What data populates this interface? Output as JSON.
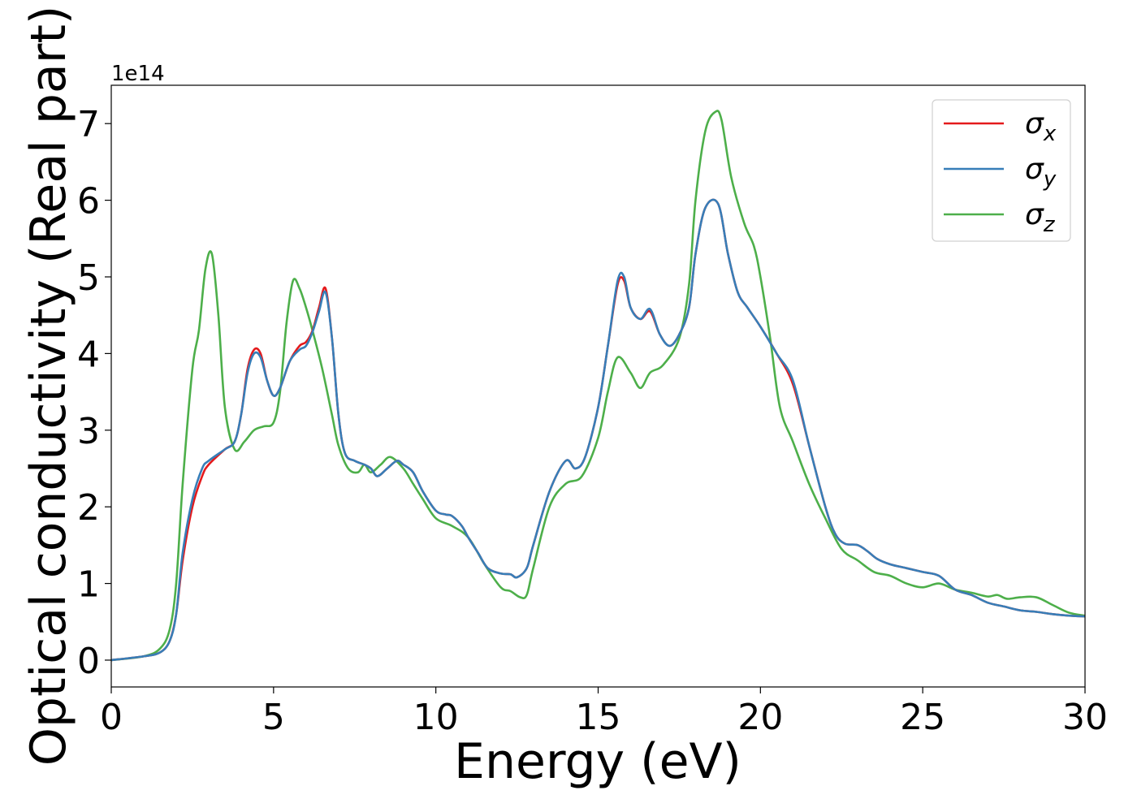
{
  "chart_data": {
    "type": "line",
    "xlabel": "Energy (eV)",
    "ylabel": "Optical conductivity (Real part)",
    "y_offset_label": "1e14",
    "xlim": [
      0,
      30
    ],
    "ylim": [
      -0.35,
      7.5
    ],
    "x_ticks": [
      0,
      5,
      10,
      15,
      20,
      25,
      30
    ],
    "y_ticks": [
      0,
      1,
      2,
      3,
      4,
      5,
      6,
      7
    ],
    "grid": false,
    "legend_position": "top-right",
    "series": [
      {
        "name": "σ",
        "subscript": "x",
        "color": "#e41a1c",
        "x": [
          0,
          1,
          1.5,
          1.8,
          2,
          2.2,
          2.5,
          2.8,
          3,
          3.5,
          3.8,
          4,
          4.2,
          4.4,
          4.6,
          4.8,
          5,
          5.2,
          5.5,
          5.8,
          6,
          6.2,
          6.4,
          6.6,
          6.8,
          7,
          7.2,
          7.5,
          7.8,
          8,
          8.2,
          8.5,
          8.8,
          9,
          9.3,
          9.6,
          10,
          10.3,
          10.5,
          10.8,
          11,
          11.3,
          11.6,
          12,
          12.3,
          12.5,
          12.8,
          13,
          13.5,
          14,
          14.3,
          14.6,
          15,
          15.3,
          15.6,
          15.8,
          16,
          16.3,
          16.6,
          16.9,
          17.2,
          17.5,
          17.8,
          18,
          18.3,
          18.7,
          19,
          19.3,
          19.6,
          20,
          20.5,
          21,
          21.5,
          22,
          22.3,
          22.6,
          23,
          23.3,
          23.6,
          24,
          24.5,
          25,
          25.5,
          26,
          26.5,
          27,
          27.5,
          28,
          28.5,
          29,
          29.5,
          30
        ],
        "y": [
          0,
          0.05,
          0.1,
          0.25,
          0.6,
          1.3,
          2,
          2.4,
          2.55,
          2.75,
          2.85,
          3.2,
          3.8,
          4.05,
          4.0,
          3.65,
          3.45,
          3.55,
          3.9,
          4.1,
          4.15,
          4.3,
          4.6,
          4.85,
          4.2,
          3.2,
          2.7,
          2.6,
          2.55,
          2.5,
          2.4,
          2.5,
          2.6,
          2.55,
          2.45,
          2.2,
          1.95,
          1.9,
          1.88,
          1.75,
          1.6,
          1.4,
          1.2,
          1.13,
          1.12,
          1.08,
          1.2,
          1.5,
          2.2,
          2.6,
          2.5,
          2.65,
          3.3,
          4.1,
          4.9,
          4.95,
          4.6,
          4.45,
          4.55,
          4.25,
          4.1,
          4.25,
          4.6,
          5.3,
          5.9,
          5.95,
          5.3,
          4.8,
          4.6,
          4.35,
          4.0,
          3.6,
          2.8,
          2.0,
          1.65,
          1.52,
          1.5,
          1.42,
          1.32,
          1.25,
          1.2,
          1.15,
          1.1,
          0.92,
          0.85,
          0.75,
          0.7,
          0.65,
          0.63,
          0.6,
          0.58,
          0.57
        ]
      },
      {
        "name": "σ",
        "subscript": "y",
        "color": "#377eb8",
        "x": [
          0,
          1,
          1.5,
          1.8,
          2,
          2.2,
          2.5,
          2.8,
          3,
          3.5,
          3.8,
          4,
          4.2,
          4.4,
          4.6,
          4.8,
          5,
          5.2,
          5.5,
          5.8,
          6,
          6.2,
          6.4,
          6.6,
          6.8,
          7,
          7.2,
          7.5,
          7.8,
          8,
          8.2,
          8.5,
          8.8,
          9,
          9.3,
          9.6,
          10,
          10.3,
          10.5,
          10.8,
          11,
          11.3,
          11.6,
          12,
          12.3,
          12.5,
          12.8,
          13,
          13.5,
          14,
          14.3,
          14.6,
          15,
          15.3,
          15.6,
          15.8,
          16,
          16.3,
          16.6,
          16.9,
          17.2,
          17.5,
          17.8,
          18,
          18.3,
          18.7,
          19,
          19.3,
          19.6,
          20,
          20.5,
          21,
          21.5,
          22,
          22.3,
          22.6,
          23,
          23.3,
          23.6,
          24,
          24.5,
          25,
          25.5,
          26,
          26.5,
          27,
          27.5,
          28,
          28.5,
          29,
          29.5,
          30
        ],
        "y": [
          0,
          0.05,
          0.1,
          0.25,
          0.6,
          1.4,
          2.1,
          2.5,
          2.6,
          2.75,
          2.85,
          3.2,
          3.75,
          4.0,
          3.95,
          3.65,
          3.45,
          3.55,
          3.9,
          4.05,
          4.1,
          4.28,
          4.55,
          4.8,
          4.2,
          3.2,
          2.7,
          2.6,
          2.55,
          2.5,
          2.4,
          2.5,
          2.6,
          2.55,
          2.45,
          2.2,
          1.95,
          1.9,
          1.88,
          1.75,
          1.6,
          1.4,
          1.2,
          1.13,
          1.12,
          1.08,
          1.2,
          1.5,
          2.2,
          2.6,
          2.5,
          2.65,
          3.3,
          4.1,
          4.95,
          5.0,
          4.6,
          4.45,
          4.58,
          4.25,
          4.1,
          4.25,
          4.6,
          5.3,
          5.9,
          5.95,
          5.3,
          4.8,
          4.6,
          4.35,
          4.0,
          3.65,
          2.8,
          2.0,
          1.65,
          1.52,
          1.5,
          1.42,
          1.32,
          1.25,
          1.2,
          1.15,
          1.1,
          0.92,
          0.85,
          0.75,
          0.7,
          0.65,
          0.63,
          0.6,
          0.58,
          0.57
        ]
      },
      {
        "name": "σ",
        "subscript": "z",
        "color": "#4daf4a",
        "x": [
          0,
          1,
          1.5,
          1.8,
          2,
          2.2,
          2.5,
          2.7,
          2.9,
          3.1,
          3.3,
          3.5,
          3.8,
          4.1,
          4.4,
          4.7,
          5,
          5.2,
          5.4,
          5.6,
          5.8,
          6,
          6.2,
          6.5,
          6.8,
          7,
          7.3,
          7.6,
          7.8,
          8,
          8.3,
          8.6,
          9,
          9.3,
          9.6,
          10,
          10.5,
          11,
          11.5,
          12,
          12.3,
          12.6,
          12.8,
          13,
          13.5,
          14,
          14.5,
          15,
          15.3,
          15.6,
          16,
          16.3,
          16.6,
          17,
          17.5,
          17.8,
          18,
          18.3,
          18.6,
          18.8,
          19.1,
          19.5,
          19.8,
          20,
          20.3,
          20.6,
          21,
          21.5,
          22,
          22.5,
          23,
          23.5,
          24,
          24.5,
          25,
          25.5,
          26,
          26.5,
          27,
          27.3,
          27.6,
          28,
          28.5,
          29,
          29.5,
          30
        ],
        "y": [
          0,
          0.05,
          0.15,
          0.4,
          1.0,
          2.3,
          3.8,
          4.3,
          5.1,
          5.3,
          4.5,
          3.3,
          2.75,
          2.85,
          3.0,
          3.05,
          3.1,
          3.5,
          4.4,
          4.95,
          4.85,
          4.6,
          4.3,
          3.8,
          3.2,
          2.8,
          2.5,
          2.45,
          2.55,
          2.45,
          2.55,
          2.65,
          2.5,
          2.3,
          2.1,
          1.85,
          1.75,
          1.6,
          1.25,
          0.95,
          0.9,
          0.82,
          0.85,
          1.2,
          2.0,
          2.3,
          2.4,
          2.9,
          3.5,
          3.95,
          3.75,
          3.55,
          3.75,
          3.85,
          4.2,
          4.9,
          6.0,
          6.9,
          7.15,
          7.05,
          6.3,
          5.7,
          5.4,
          5.0,
          4.2,
          3.3,
          2.85,
          2.3,
          1.85,
          1.45,
          1.3,
          1.15,
          1.1,
          1.0,
          0.95,
          1.0,
          0.92,
          0.88,
          0.83,
          0.85,
          0.8,
          0.82,
          0.82,
          0.72,
          0.62,
          0.58
        ]
      }
    ]
  }
}
